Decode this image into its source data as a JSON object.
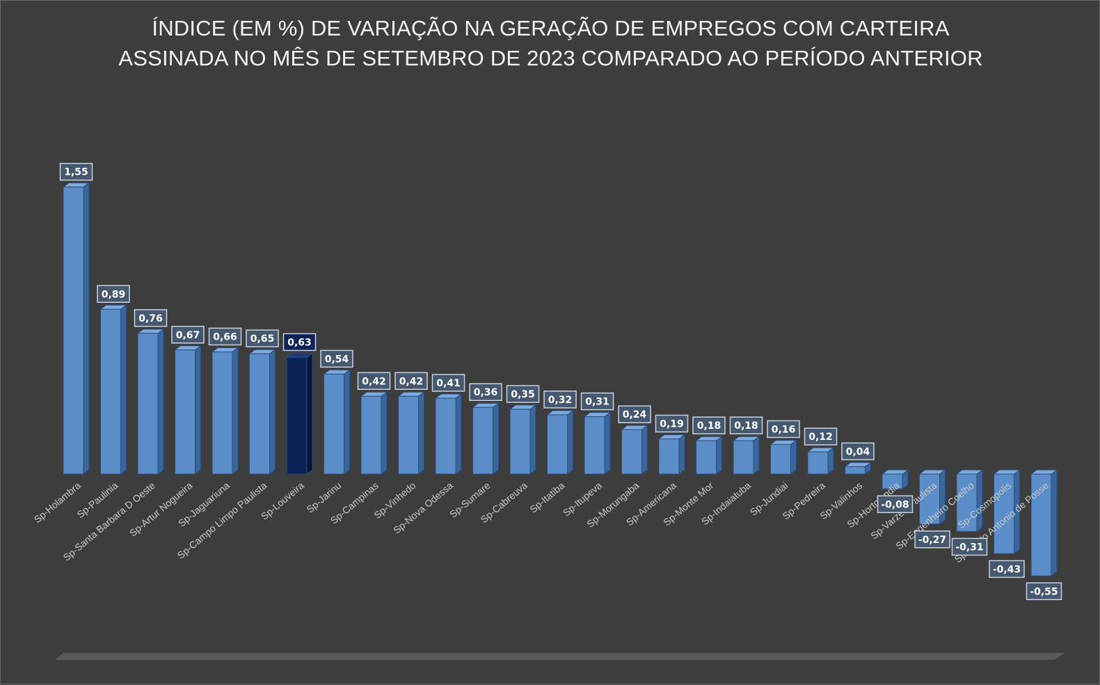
{
  "chart_data": {
    "type": "bar",
    "title_lines": [
      "ÍNDICE (EM %) DE VARIAÇÃO NA GERAÇÃO DE EMPREGOS COM CARTEIRA",
      "ASSINADA NO MÊS DE SETEMBRO DE 2023 COMPARADO AO PERÍODO ANTERIOR"
    ],
    "categories": [
      "Sp-Holambra",
      "Sp-Paulinia",
      "Sp-Santa Barbara D Oeste",
      "Sp-Artur Nogueira",
      "Sp-Jaguariuna",
      "Sp-Campo Limpo Paulista",
      "Sp-Louveira",
      "Sp-Jarinu",
      "Sp-Campinas",
      "Sp-Vinhedo",
      "Sp-Nova Odessa",
      "Sp-Sumare",
      "Sp-Cabreuva",
      "Sp-Itatiba",
      "Sp-Itupeva",
      "Sp-Morungaba",
      "Sp-Americana",
      "Sp-Monte Mor",
      "Sp-Indaiatuba",
      "Sp-Jundiai",
      "Sp-Pedreira",
      "Sp-Valinhos",
      "Sp-Hortolandia",
      "Sp-Varzea Paulista",
      "Sp-Engenheiro Coelho",
      "Sp-Cosmopolis",
      "Sp-Santo Antonio de Posse"
    ],
    "value_labels": [
      "1,55",
      "0,89",
      "0,76",
      "0,67",
      "0,66",
      "0,65",
      "0,63",
      "0,54",
      "0,42",
      "0,42",
      "0,41",
      "0,36",
      "0,35",
      "0,32",
      "0,31",
      "0,24",
      "0,19",
      "0,18",
      "0,18",
      "0,16",
      "0,12",
      "0,04",
      "-0,08",
      "-0,27",
      "-0,31",
      "-0,43",
      "-0,55"
    ],
    "values": [
      1.55,
      0.89,
      0.76,
      0.67,
      0.66,
      0.65,
      0.63,
      0.54,
      0.42,
      0.42,
      0.41,
      0.36,
      0.35,
      0.32,
      0.31,
      0.24,
      0.19,
      0.18,
      0.18,
      0.16,
      0.12,
      0.04,
      -0.08,
      -0.27,
      -0.31,
      -0.43,
      -0.55
    ],
    "highlight_category": "Sp-Louveira",
    "colors": {
      "background": "#3d3d3d",
      "bar_front": "#5b8ec9",
      "bar_side": "#3b6699",
      "bar_top": "#7da9dc",
      "bar_edge": "#2a4c7a",
      "highlight_front": "#0d2257",
      "highlight_side": "#081538",
      "highlight_top": "#1e3a7a",
      "label_box_fill": "#46586e",
      "label_box_stroke": "#c9d3e0",
      "category_text": "#c8c8c8",
      "floor": "#5a5a5a"
    },
    "grid": false,
    "legend": "none"
  }
}
